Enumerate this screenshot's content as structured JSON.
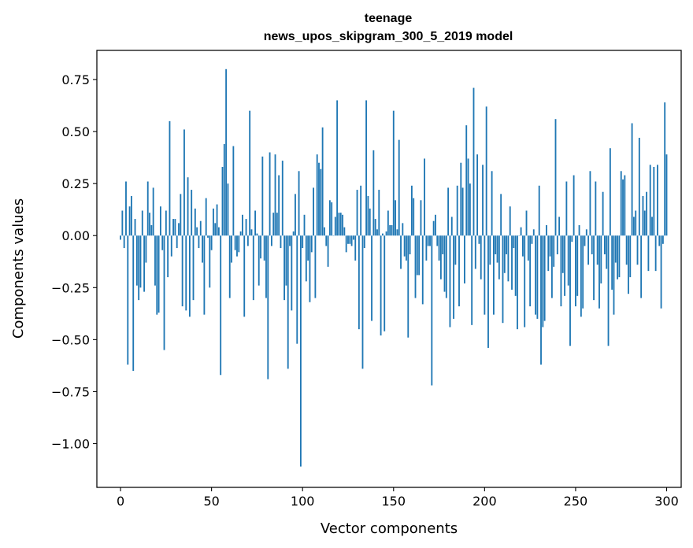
{
  "chart_data": {
    "type": "bar",
    "title_line1": "teenage",
    "title_line2": "news_upos_skipgram_300_5_2019 model",
    "xlabel": "Vector components",
    "ylabel": "Components values",
    "xlim": [
      -13,
      308
    ],
    "ylim": [
      -1.21,
      0.89
    ],
    "x_ticks": [
      0,
      50,
      100,
      150,
      200,
      250,
      300
    ],
    "y_ticks": [
      -1.0,
      -0.75,
      -0.5,
      -0.25,
      0.0,
      0.25,
      0.5,
      0.75
    ],
    "x_tick_labels": [
      "0",
      "50",
      "100",
      "150",
      "200",
      "250",
      "300"
    ],
    "y_tick_labels": [
      "−1.00",
      "−0.75",
      "−0.50",
      "−0.25",
      "0.00",
      "0.25",
      "0.50",
      "0.75"
    ],
    "bar_color": "#1f77b4",
    "grid": false,
    "values": [
      -0.02,
      0.12,
      -0.06,
      0.26,
      -0.62,
      0.14,
      0.19,
      -0.65,
      0.08,
      -0.24,
      -0.31,
      -0.25,
      0.12,
      -0.27,
      -0.13,
      0.26,
      0.11,
      0.05,
      0.23,
      -0.24,
      -0.38,
      -0.37,
      0.14,
      -0.07,
      -0.55,
      0.12,
      -0.2,
      0.55,
      -0.1,
      0.08,
      0.08,
      -0.06,
      0.06,
      0.2,
      -0.34,
      0.51,
      -0.36,
      0.28,
      -0.39,
      0.22,
      -0.31,
      0.13,
      0.04,
      -0.06,
      0.07,
      -0.13,
      -0.38,
      0.18,
      -0.01,
      -0.25,
      -0.07,
      0.13,
      0.06,
      0.15,
      0.04,
      -0.67,
      0.33,
      0.44,
      0.8,
      0.25,
      -0.3,
      -0.13,
      0.43,
      -0.07,
      -0.1,
      -0.08,
      0.02,
      0.1,
      -0.39,
      0.08,
      -0.05,
      0.6,
      0.03,
      -0.31,
      0.12,
      0.01,
      -0.24,
      -0.11,
      0.38,
      -0.12,
      -0.3,
      -0.69,
      0.4,
      -0.05,
      0.11,
      0.39,
      0.11,
      0.29,
      -0.06,
      0.36,
      -0.31,
      -0.24,
      -0.64,
      -0.05,
      -0.36,
      0.02,
      0.2,
      -0.52,
      0.31,
      -1.11,
      -0.06,
      0.1,
      -0.22,
      -0.12,
      -0.32,
      -0.08,
      0.23,
      -0.3,
      0.39,
      0.35,
      0.32,
      0.52,
      0.04,
      -0.05,
      -0.15,
      0.17,
      0.16,
      0.0,
      0.09,
      0.65,
      0.11,
      0.11,
      0.1,
      0.04,
      -0.08,
      -0.04,
      -0.04,
      -0.05,
      -0.02,
      -0.12,
      0.22,
      -0.45,
      0.24,
      -0.64,
      -0.06,
      0.65,
      0.19,
      0.13,
      -0.41,
      0.41,
      0.08,
      0.03,
      0.22,
      -0.48,
      0.01,
      -0.46,
      0.02,
      0.12,
      0.05,
      0.05,
      0.6,
      0.17,
      0.03,
      0.46,
      -0.16,
      0.06,
      -0.1,
      -0.12,
      -0.49,
      -0.09,
      0.24,
      0.18,
      -0.3,
      -0.19,
      -0.19,
      0.17,
      -0.33,
      0.37,
      -0.12,
      -0.05,
      -0.05,
      -0.72,
      0.07,
      0.1,
      -0.05,
      -0.12,
      -0.21,
      -0.09,
      -0.27,
      -0.3,
      0.23,
      -0.44,
      0.09,
      -0.4,
      -0.14,
      0.24,
      -0.34,
      0.35,
      0.23,
      -0.23,
      0.53,
      0.37,
      0.25,
      -0.43,
      0.71,
      -0.16,
      0.39,
      -0.04,
      -0.21,
      0.34,
      -0.38,
      0.62,
      -0.54,
      -0.14,
      0.31,
      -0.38,
      -0.09,
      -0.13,
      -0.21,
      0.2,
      -0.42,
      -0.18,
      -0.09,
      -0.22,
      0.14,
      -0.26,
      -0.06,
      -0.29,
      -0.45,
      0.0,
      0.04,
      -0.1,
      -0.44,
      0.12,
      -0.12,
      -0.34,
      -0.04,
      0.03,
      -0.38,
      -0.4,
      0.24,
      -0.62,
      -0.44,
      -0.41,
      0.05,
      -0.17,
      -0.1,
      -0.3,
      -0.15,
      0.56,
      -0.09,
      0.09,
      -0.34,
      -0.18,
      -0.29,
      0.26,
      -0.24,
      -0.53,
      -0.03,
      0.29,
      -0.34,
      -0.29,
      0.05,
      -0.39,
      -0.35,
      -0.05,
      0.03,
      -0.14,
      0.31,
      -0.09,
      -0.31,
      0.26,
      -0.14,
      -0.35,
      -0.23,
      0.21,
      -0.09,
      -0.16,
      -0.53,
      0.42,
      -0.26,
      -0.38,
      -0.13,
      -0.21,
      -0.2,
      0.31,
      0.27,
      0.29,
      -0.14,
      -0.28,
      -0.2,
      0.54,
      0.09,
      0.12,
      -0.14,
      0.47,
      -0.3,
      0.19,
      0.12,
      0.21,
      -0.17,
      0.34,
      0.09,
      0.33,
      -0.17,
      0.34,
      -0.05,
      -0.35,
      -0.04,
      0.64,
      0.39
    ]
  }
}
